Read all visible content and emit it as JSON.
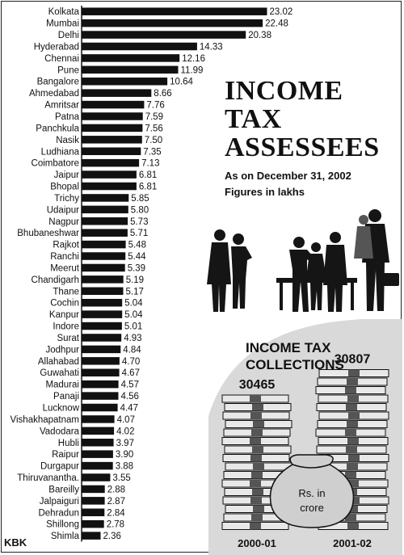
{
  "header": {
    "title_lines": [
      "INCOME",
      "TAX",
      "ASSESSEES"
    ],
    "subtitle_date": "As on December 31, 2002",
    "subtitle_units": "Figures in lakhs"
  },
  "chart_data": [
    {
      "type": "bar",
      "orientation": "horizontal",
      "title": "INCOME TAX ASSESSEES",
      "subtitle": "As on December 31, 2002",
      "units": "Figures in lakhs",
      "categories": [
        "Kolkata",
        "Mumbai",
        "Delhi",
        "Hyderabad",
        "Chennai",
        "Pune",
        "Bangalore",
        "Ahmedabad",
        "Amritsar",
        "Patna",
        "Panchkula",
        "Nasik",
        "Ludhiana",
        "Coimbatore",
        "Jaipur",
        "Bhopal",
        "Trichy",
        "Udaipur",
        "Nagpur",
        "Bhubaneshwar",
        "Rajkot",
        "Ranchi",
        "Meerut",
        "Chandigarh",
        "Thane",
        "Cochin",
        "Kanpur",
        "Indore",
        "Surat",
        "Jodhpur",
        "Allahabad",
        "Guwahati",
        "Madurai",
        "Panaji",
        "Lucknow",
        "Vishakhapatnam",
        "Vadodara",
        "Hubli",
        "Raipur",
        "Durgapur",
        "Thiruvanantha.",
        "Bareilly",
        "Jalpaiguri",
        "Dehradun",
        "Shillong",
        "Shimla"
      ],
      "values": [
        23.02,
        22.48,
        20.38,
        14.33,
        12.16,
        11.99,
        10.64,
        8.66,
        7.76,
        7.59,
        7.56,
        7.5,
        7.35,
        7.13,
        6.81,
        6.81,
        5.85,
        5.8,
        5.73,
        5.71,
        5.48,
        5.44,
        5.39,
        5.19,
        5.17,
        5.04,
        5.04,
        5.01,
        4.93,
        4.84,
        4.7,
        4.67,
        4.57,
        4.56,
        4.47,
        4.07,
        4.02,
        3.97,
        3.9,
        3.88,
        3.55,
        2.88,
        2.87,
        2.84,
        2.78,
        2.36
      ],
      "value_labels": [
        "23.02",
        "22.48",
        "20.38",
        "14.33",
        "12.16",
        "11.99",
        "10.64",
        "8.66",
        "7.76",
        "7.59",
        "7.56",
        "7.50",
        "7.35",
        "7.13",
        "6.81",
        "6.81",
        "5.85",
        "5.80",
        "5.73",
        "5.71",
        "5.48",
        "5.44",
        "5.39",
        "5.19",
        "5.17",
        "5.04",
        "5.04",
        "5.01",
        "4.93",
        "4.84",
        "4.70",
        "4.67",
        "4.57",
        "4.56",
        "4.47",
        "4.07",
        "4.02",
        "3.97",
        "3.90",
        "3.88",
        "3.55",
        "2.88",
        "2.87",
        "2.84",
        "2.78",
        "2.36"
      ],
      "bar_color": "#111111",
      "grid": false
    },
    {
      "type": "bar",
      "title": "INCOME TAX COLLECTIONS",
      "units": "Rs. in crore",
      "categories": [
        "2000-01",
        "2001-02"
      ],
      "values": [
        30465,
        30807
      ],
      "value_labels": [
        "30465",
        "30807"
      ]
    }
  ],
  "collections": {
    "title_line1": "INCOME TAX",
    "title_line2": "COLLECTIONS",
    "bag_line1": "Rs. in",
    "bag_line2": "crore"
  },
  "credit": "KBK",
  "colors": {
    "ink": "#111111",
    "paper": "#ffffff",
    "panel": "#d9d9d9",
    "bag": "#cfcfcf",
    "money": "#e8e8e8"
  },
  "icons": [
    "businesspeople-silhouette-illustration",
    "banknote-stacks-illustration",
    "money-bag-illustration"
  ]
}
